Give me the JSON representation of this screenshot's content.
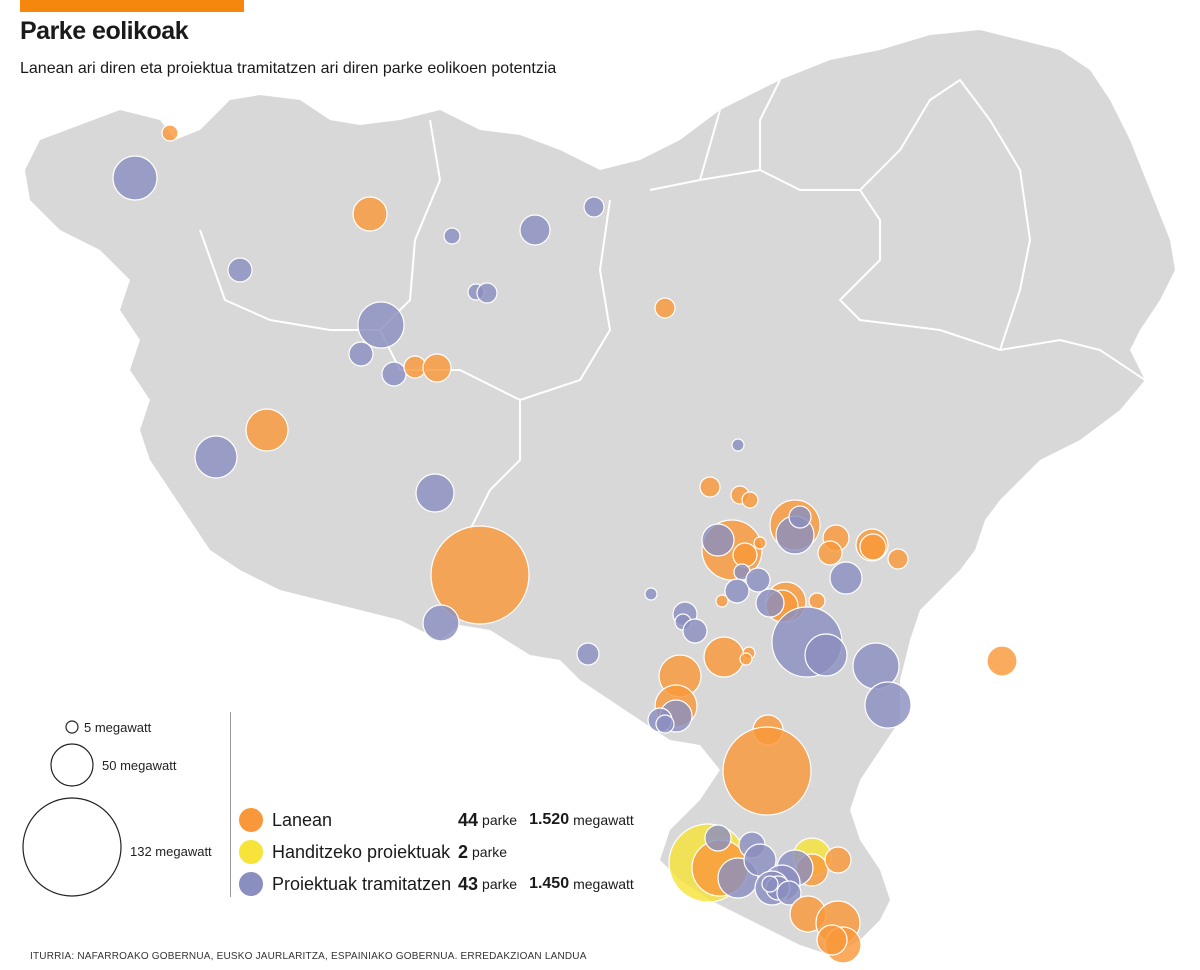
{
  "header": {
    "title": "Parke eolikoak",
    "subtitle": "Lanean ari diren eta proiektua tramitatzen ari diren parke eolikoen potentzia"
  },
  "colors": {
    "land": "#d8d8d8",
    "border": "#ffffff",
    "lanean": "#f9983a",
    "handitzeko": "#f7e33a",
    "tramitatzen": "#8b8fc0",
    "accent": "#f5870f"
  },
  "size_legend": {
    "items": [
      {
        "value": 5,
        "label": "5 megawatt"
      },
      {
        "value": 50,
        "label": "50 megawatt"
      },
      {
        "value": 132,
        "label": "132 megawatt"
      }
    ]
  },
  "legend": {
    "rows": [
      {
        "key": "lanean",
        "label": "Lanean",
        "count": "44",
        "count_unit": "parke",
        "mw": "1.520",
        "mw_unit": "megawatt"
      },
      {
        "key": "handitzeko",
        "label": "Handitzeko proiektuak",
        "count": "2",
        "count_unit": "parke",
        "mw": "",
        "mw_unit": ""
      },
      {
        "key": "tramitatzen",
        "label": "Proiektuak tramitatzen",
        "count": "43",
        "count_unit": "parke",
        "mw": "1.450",
        "mw_unit": "megawatt"
      }
    ]
  },
  "source": "ITURRIA: NAFARROAKO GOBERNUA, EUSKO JAURLARITZA, ESPAINIAKO GOBERNUA. ERREDAKZIOAN LANDUA"
}
